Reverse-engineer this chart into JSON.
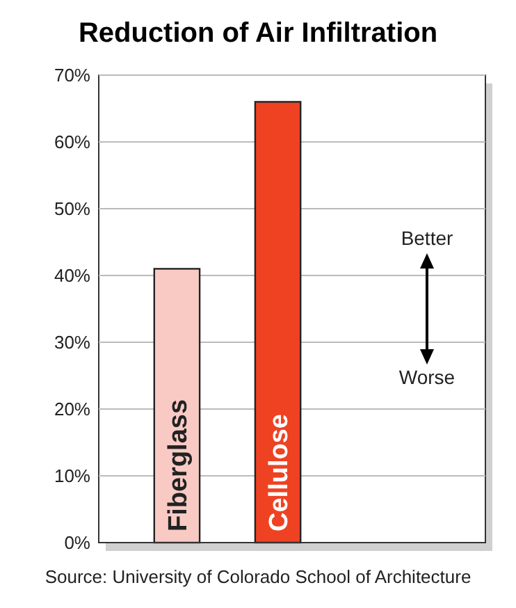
{
  "chart_data": {
    "type": "bar",
    "title": "Reduction of Air Infiltration",
    "categories": [
      "Fiberglass",
      "Cellulose"
    ],
    "values": [
      41,
      66
    ],
    "colors": [
      "#f9cac4",
      "#ee4223"
    ],
    "ylim": [
      0,
      70
    ],
    "yticks": [
      {
        "value": 0,
        "label": "0%"
      },
      {
        "value": 10,
        "label": "10%"
      },
      {
        "value": 20,
        "label": "20%"
      },
      {
        "value": 30,
        "label": "30%"
      },
      {
        "value": 40,
        "label": "40%"
      },
      {
        "value": 50,
        "label": "50%"
      },
      {
        "value": 60,
        "label": "60%"
      },
      {
        "value": 70,
        "label": "70%"
      }
    ],
    "grid": "y",
    "annotations": [
      "Better",
      "Worse",
      "Source:  University of Colorado School of Architecture"
    ]
  }
}
